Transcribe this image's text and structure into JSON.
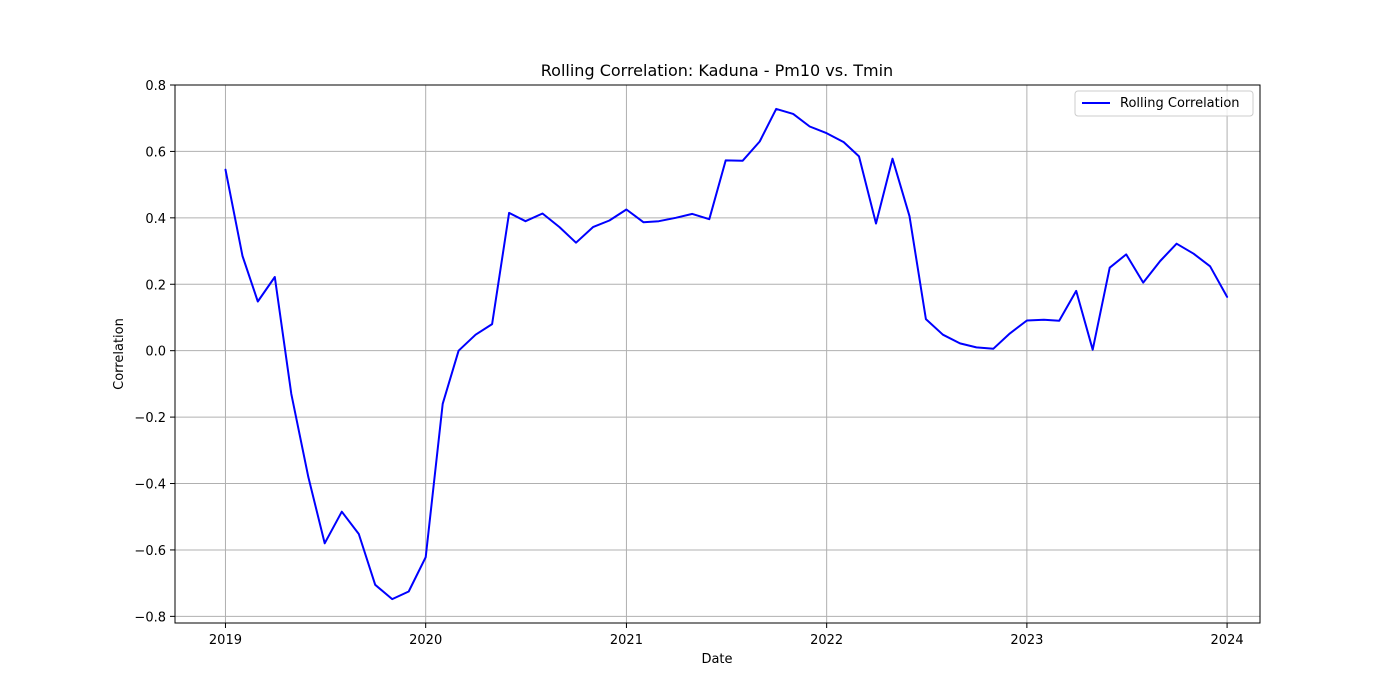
{
  "chart_data": {
    "type": "line",
    "title": "Rolling Correlation: Kaduna - Pm10 vs. Tmin",
    "xlabel": "Date",
    "ylabel": "Correlation",
    "x_ticks": [
      "2019",
      "2020",
      "2021",
      "2022",
      "2023",
      "2024"
    ],
    "y_ticks": [
      "0.8",
      "0.6",
      "0.4",
      "0.2",
      "0.0",
      "−0.2",
      "−0.4",
      "−0.6",
      "−0.8"
    ],
    "xlim": [
      "2018-10-01",
      "2024-03-01"
    ],
    "ylim": [
      -0.82,
      0.8
    ],
    "grid": true,
    "legend_position": "upper right",
    "series": [
      {
        "name": "Rolling Correlation",
        "color": "#0000ff",
        "x": [
          "2019-01",
          "2019-02",
          "2019-03",
          "2019-04",
          "2019-05",
          "2019-06",
          "2019-07",
          "2019-08",
          "2019-09",
          "2019-10",
          "2019-11",
          "2019-12",
          "2020-01",
          "2020-02",
          "2020-03",
          "2020-04",
          "2020-05",
          "2020-06",
          "2020-07",
          "2020-08",
          "2020-09",
          "2020-10",
          "2020-11",
          "2020-12",
          "2021-01",
          "2021-02",
          "2021-03",
          "2021-04",
          "2021-05",
          "2021-06",
          "2021-07",
          "2021-08",
          "2021-09",
          "2021-10",
          "2021-11",
          "2021-12",
          "2022-01",
          "2022-02",
          "2022-03",
          "2022-04",
          "2022-05",
          "2022-06",
          "2022-07",
          "2022-08",
          "2022-09",
          "2022-10",
          "2022-11",
          "2022-12",
          "2023-01",
          "2023-02",
          "2023-03",
          "2023-04",
          "2023-05",
          "2023-06",
          "2023-07",
          "2023-08",
          "2023-09",
          "2023-10",
          "2023-11",
          "2023-12",
          "2024-01"
        ],
        "y": [
          0.545,
          0.285,
          0.148,
          0.222,
          -0.13,
          -0.38,
          -0.58,
          -0.485,
          -0.552,
          -0.705,
          -0.748,
          -0.725,
          -0.622,
          -0.16,
          0.0,
          0.048,
          0.08,
          0.415,
          0.39,
          0.413,
          0.372,
          0.325,
          0.372,
          0.392,
          0.425,
          0.387,
          0.39,
          0.4,
          0.412,
          0.396,
          0.573,
          0.572,
          0.63,
          0.728,
          0.713,
          0.675,
          0.655,
          0.628,
          0.585,
          0.383,
          0.578,
          0.405,
          0.095,
          0.048,
          0.022,
          0.01,
          0.006,
          0.052,
          0.091,
          0.093,
          0.09,
          0.18,
          0.003,
          0.25,
          0.29,
          0.205,
          0.27,
          0.322,
          0.292,
          0.254,
          0.162
        ]
      }
    ]
  }
}
